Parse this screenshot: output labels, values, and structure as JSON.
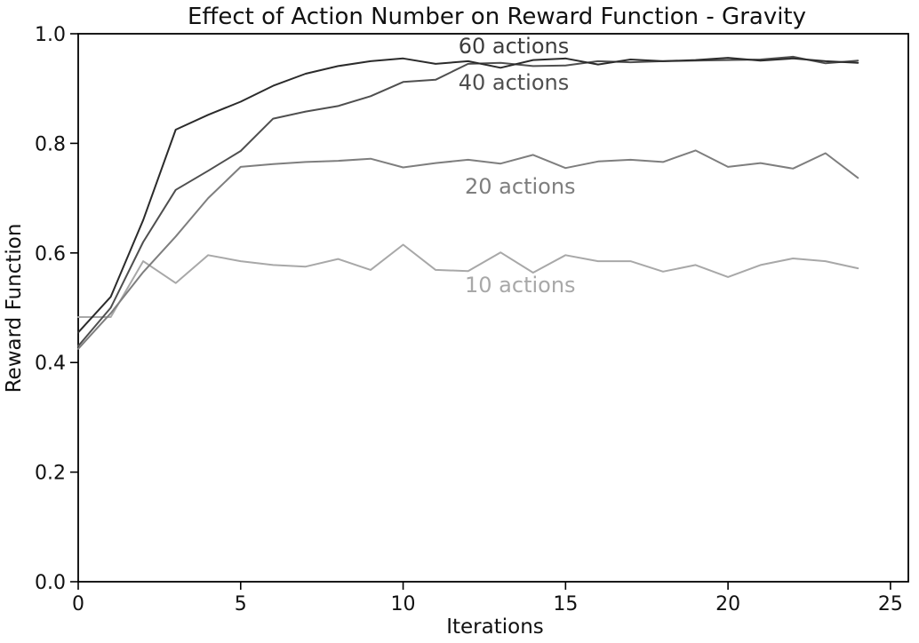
{
  "figure": {
    "background": "#ffffff",
    "spine_color": "#000000"
  },
  "chart_data": {
    "type": "line",
    "title": "Effect of Action Number on Reward Function - Gravity",
    "xlabel": "Iterations",
    "ylabel": "Reward Function",
    "xlim": [
      0,
      25.55
    ],
    "ylim": [
      0.0,
      1.0
    ],
    "x_ticks": [
      0,
      5,
      10,
      15,
      20,
      25
    ],
    "y_ticks": [
      0.0,
      0.2,
      0.4,
      0.6,
      0.8,
      1.0
    ],
    "grid": false,
    "legend_position": "inline-annotations",
    "x": [
      0,
      1,
      2,
      3,
      4,
      5,
      6,
      7,
      8,
      9,
      10,
      11,
      12,
      13,
      14,
      15,
      16,
      17,
      18,
      19,
      20,
      21,
      22,
      23,
      24
    ],
    "series": [
      {
        "name": "10 actions",
        "color": "#a8a8a8",
        "values": [
          0.483,
          0.483,
          0.585,
          0.545,
          0.596,
          0.585,
          0.578,
          0.575,
          0.589,
          0.569,
          0.615,
          0.569,
          0.567,
          0.601,
          0.564,
          0.596,
          0.585,
          0.585,
          0.566,
          0.578,
          0.556,
          0.578,
          0.59,
          0.585,
          0.572
        ]
      },
      {
        "name": "20 actions",
        "color": "#7e7e7e",
        "values": [
          0.425,
          0.49,
          0.565,
          0.63,
          0.7,
          0.757,
          0.762,
          0.766,
          0.768,
          0.772,
          0.756,
          0.764,
          0.77,
          0.763,
          0.779,
          0.755,
          0.767,
          0.77,
          0.766,
          0.787,
          0.757,
          0.764,
          0.754,
          0.782,
          0.737
        ]
      },
      {
        "name": "40 actions",
        "color": "#4f4f4f",
        "values": [
          0.43,
          0.5,
          0.62,
          0.715,
          0.75,
          0.786,
          0.845,
          0.858,
          0.868,
          0.886,
          0.912,
          0.916,
          0.945,
          0.947,
          0.941,
          0.942,
          0.95,
          0.948,
          0.95,
          0.951,
          0.952,
          0.953,
          0.958,
          0.946,
          0.951
        ]
      },
      {
        "name": "60 actions",
        "color": "#2b2b2b",
        "values": [
          0.455,
          0.52,
          0.66,
          0.825,
          0.852,
          0.876,
          0.905,
          0.927,
          0.941,
          0.95,
          0.955,
          0.945,
          0.95,
          0.938,
          0.952,
          0.955,
          0.944,
          0.953,
          0.95,
          0.952,
          0.956,
          0.951,
          0.955,
          0.95,
          0.947
        ]
      }
    ],
    "annotations": [
      {
        "text": "60 actions",
        "x": 11.7,
        "y": 0.977,
        "color": "#3d3d3d"
      },
      {
        "text": "40 actions",
        "x": 11.7,
        "y": 0.911,
        "color": "#4f4f4f"
      },
      {
        "text": "20 actions",
        "x": 11.9,
        "y": 0.721,
        "color": "#7e7e7e"
      },
      {
        "text": "10 actions",
        "x": 11.9,
        "y": 0.541,
        "color": "#a8a8a8"
      }
    ]
  }
}
